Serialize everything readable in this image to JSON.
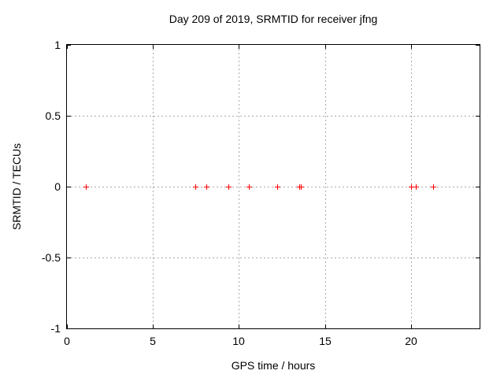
{
  "chart_data": {
    "type": "scatter",
    "title": "Day 209 of 2019, SRMTID for receiver jfng",
    "xlabel": "GPS time / hours",
    "ylabel": "SRMTID / TECUs",
    "xlim": [
      0,
      24
    ],
    "ylim": [
      -1,
      1
    ],
    "grid": true,
    "legend": false,
    "xticks": [
      {
        "value": 0,
        "label": "0"
      },
      {
        "value": 5,
        "label": "5"
      },
      {
        "value": 10,
        "label": "10"
      },
      {
        "value": 15,
        "label": "15"
      },
      {
        "value": 20,
        "label": "20"
      }
    ],
    "yticks": [
      {
        "value": 1,
        "label": "1"
      },
      {
        "value": 0.5,
        "label": "0.5"
      },
      {
        "value": 0,
        "label": "0"
      },
      {
        "value": -0.5,
        "label": "-0.5"
      },
      {
        "value": -1,
        "label": "-1"
      }
    ],
    "series": [
      {
        "name": "SRMTID",
        "marker": "plus",
        "color": "#ff0000",
        "points": [
          {
            "x": 1.1,
            "y": 0
          },
          {
            "x": 7.45,
            "y": 0
          },
          {
            "x": 8.1,
            "y": 0
          },
          {
            "x": 9.4,
            "y": 0
          },
          {
            "x": 10.6,
            "y": 0
          },
          {
            "x": 12.25,
            "y": 0
          },
          {
            "x": 13.5,
            "y": 0
          },
          {
            "x": 13.6,
            "y": 0
          },
          {
            "x": 20.0,
            "y": 0
          },
          {
            "x": 20.3,
            "y": 0
          },
          {
            "x": 21.3,
            "y": 0
          }
        ]
      }
    ],
    "colors": {
      "marker": "#ff0000",
      "grid": "#a9a9a9",
      "axis": "#000000",
      "background": "#ffffff",
      "text": "#000000"
    }
  }
}
